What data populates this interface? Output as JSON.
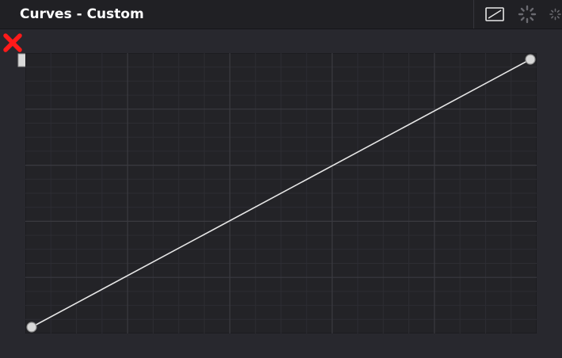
{
  "panel": {
    "title": "Curves - Custom"
  },
  "toolbar": {
    "buttons": [
      {
        "name": "curve-preset-button",
        "icon": "linear-curve-icon"
      },
      {
        "name": "spinner-button-1",
        "icon": "spinner-icon"
      },
      {
        "name": "spinner-button-2",
        "icon": "spinner-icon"
      }
    ]
  },
  "colors": {
    "background": "#28282e",
    "header": "#202024",
    "plot_background": "#232327",
    "grid_minor": "#2d2d33",
    "grid_major": "#3a3a40",
    "curve": "#e6e6e6",
    "reset_icon": "#ff1a1a"
  },
  "curve_editor": {
    "reset_icon": "red-x-icon",
    "control_points": [
      {
        "x": 0,
        "y": 0
      },
      {
        "x": 1,
        "y": 1
      }
    ],
    "grid_divisions": 5
  }
}
